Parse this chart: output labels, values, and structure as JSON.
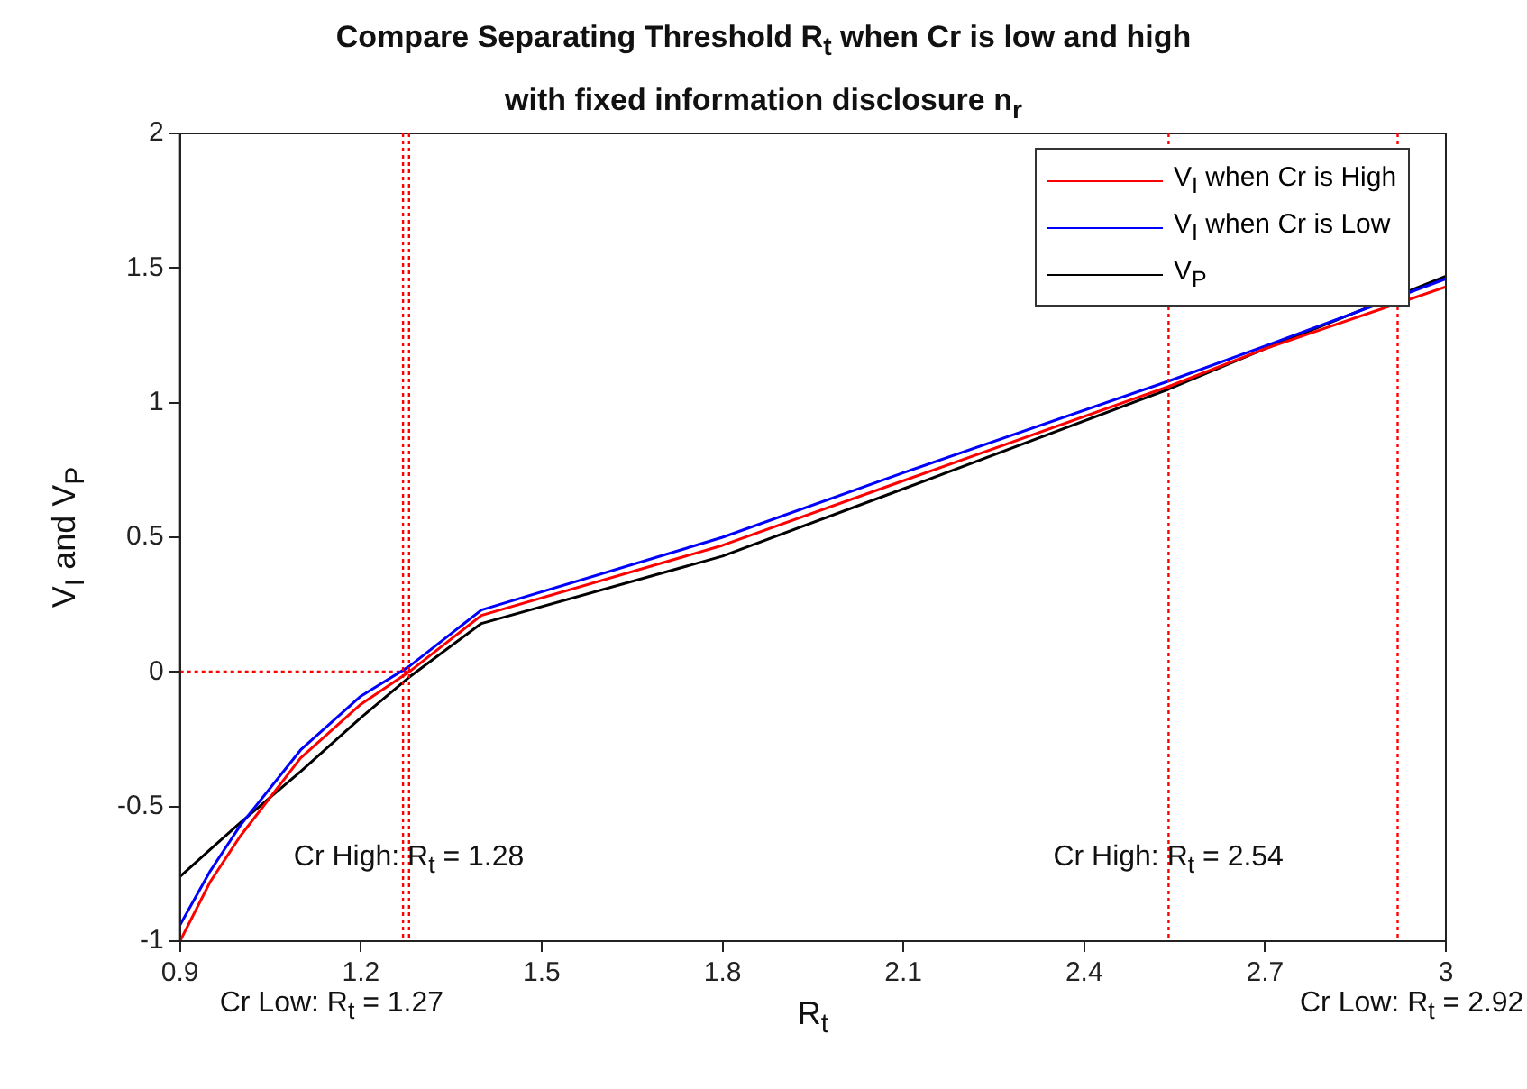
{
  "chart_data": {
    "type": "line",
    "title": "Compare Separating Threshold R$_{t}$ when Cr is low and high\nwith fixed information disclosure n$_{r}$",
    "xlabel": "R$_{t}$",
    "ylabel": "V$_{I}$ and  V$_{P}$",
    "x": [
      0.9,
      0.95,
      1.0,
      1.1,
      1.2,
      1.28,
      1.4,
      1.8,
      2.1,
      2.54,
      2.7,
      3.0
    ],
    "series": [
      {
        "name": "V$_{I}$ when Cr is High",
        "color": "#ff0000",
        "values": [
          -1.0,
          -0.78,
          -0.61,
          -0.32,
          -0.12,
          0.0,
          0.21,
          0.47,
          0.71,
          1.06,
          1.2,
          1.43
        ]
      },
      {
        "name": "V$_{I}$ when Cr is Low",
        "color": "#0000ff",
        "values": [
          -0.94,
          -0.74,
          -0.57,
          -0.29,
          -0.09,
          0.02,
          0.23,
          0.5,
          0.74,
          1.08,
          1.21,
          1.46
        ]
      },
      {
        "name": "V$_{P}$",
        "color": "#000000",
        "values": [
          -0.76,
          -0.66,
          -0.56,
          -0.37,
          -0.17,
          -0.02,
          0.18,
          0.43,
          0.68,
          1.05,
          1.2,
          1.47
        ]
      },
      {
        "x": [
          0.9,
          1.28
        ],
        "values": [
          0,
          0
        ],
        "color": "#ff0000",
        "line_style": "dotted"
      }
    ],
    "ref_lines": [
      {
        "axis": "x",
        "value": 1.27,
        "color": "#ff0000",
        "line_style": "dotted"
      },
      {
        "axis": "x",
        "value": 1.28,
        "color": "#ff0000",
        "line_style": "dotted"
      },
      {
        "axis": "x",
        "value": 2.54,
        "color": "#ff0000",
        "line_style": "dotted"
      },
      {
        "axis": "x",
        "value": 2.92,
        "color": "#ff0000",
        "line_style": "dotted"
      }
    ],
    "annotations": [
      {
        "text": "Cr High: R$_{t}$ = 1.28",
        "x": 1.28,
        "y": -0.7
      },
      {
        "text": "Cr High: R$_{t}$ = 2.54",
        "x": 2.54,
        "y": -0.7
      },
      "Cr Low: R$_{t}$ = 1.27",
      "Cr Low: R$_{t}$ = 2.92"
    ],
    "xlim": [
      0.9,
      3.0
    ],
    "xticks": [
      0.9,
      1.2,
      1.5,
      1.8,
      2.1,
      2.4,
      2.7,
      3
    ],
    "ylim": [
      -1,
      2
    ],
    "yticks": [
      -1,
      -0.5,
      0,
      0.5,
      1,
      1.5,
      2
    ],
    "grid": false,
    "legend": "top right",
    "marker": "none",
    "line_style": "solid"
  }
}
